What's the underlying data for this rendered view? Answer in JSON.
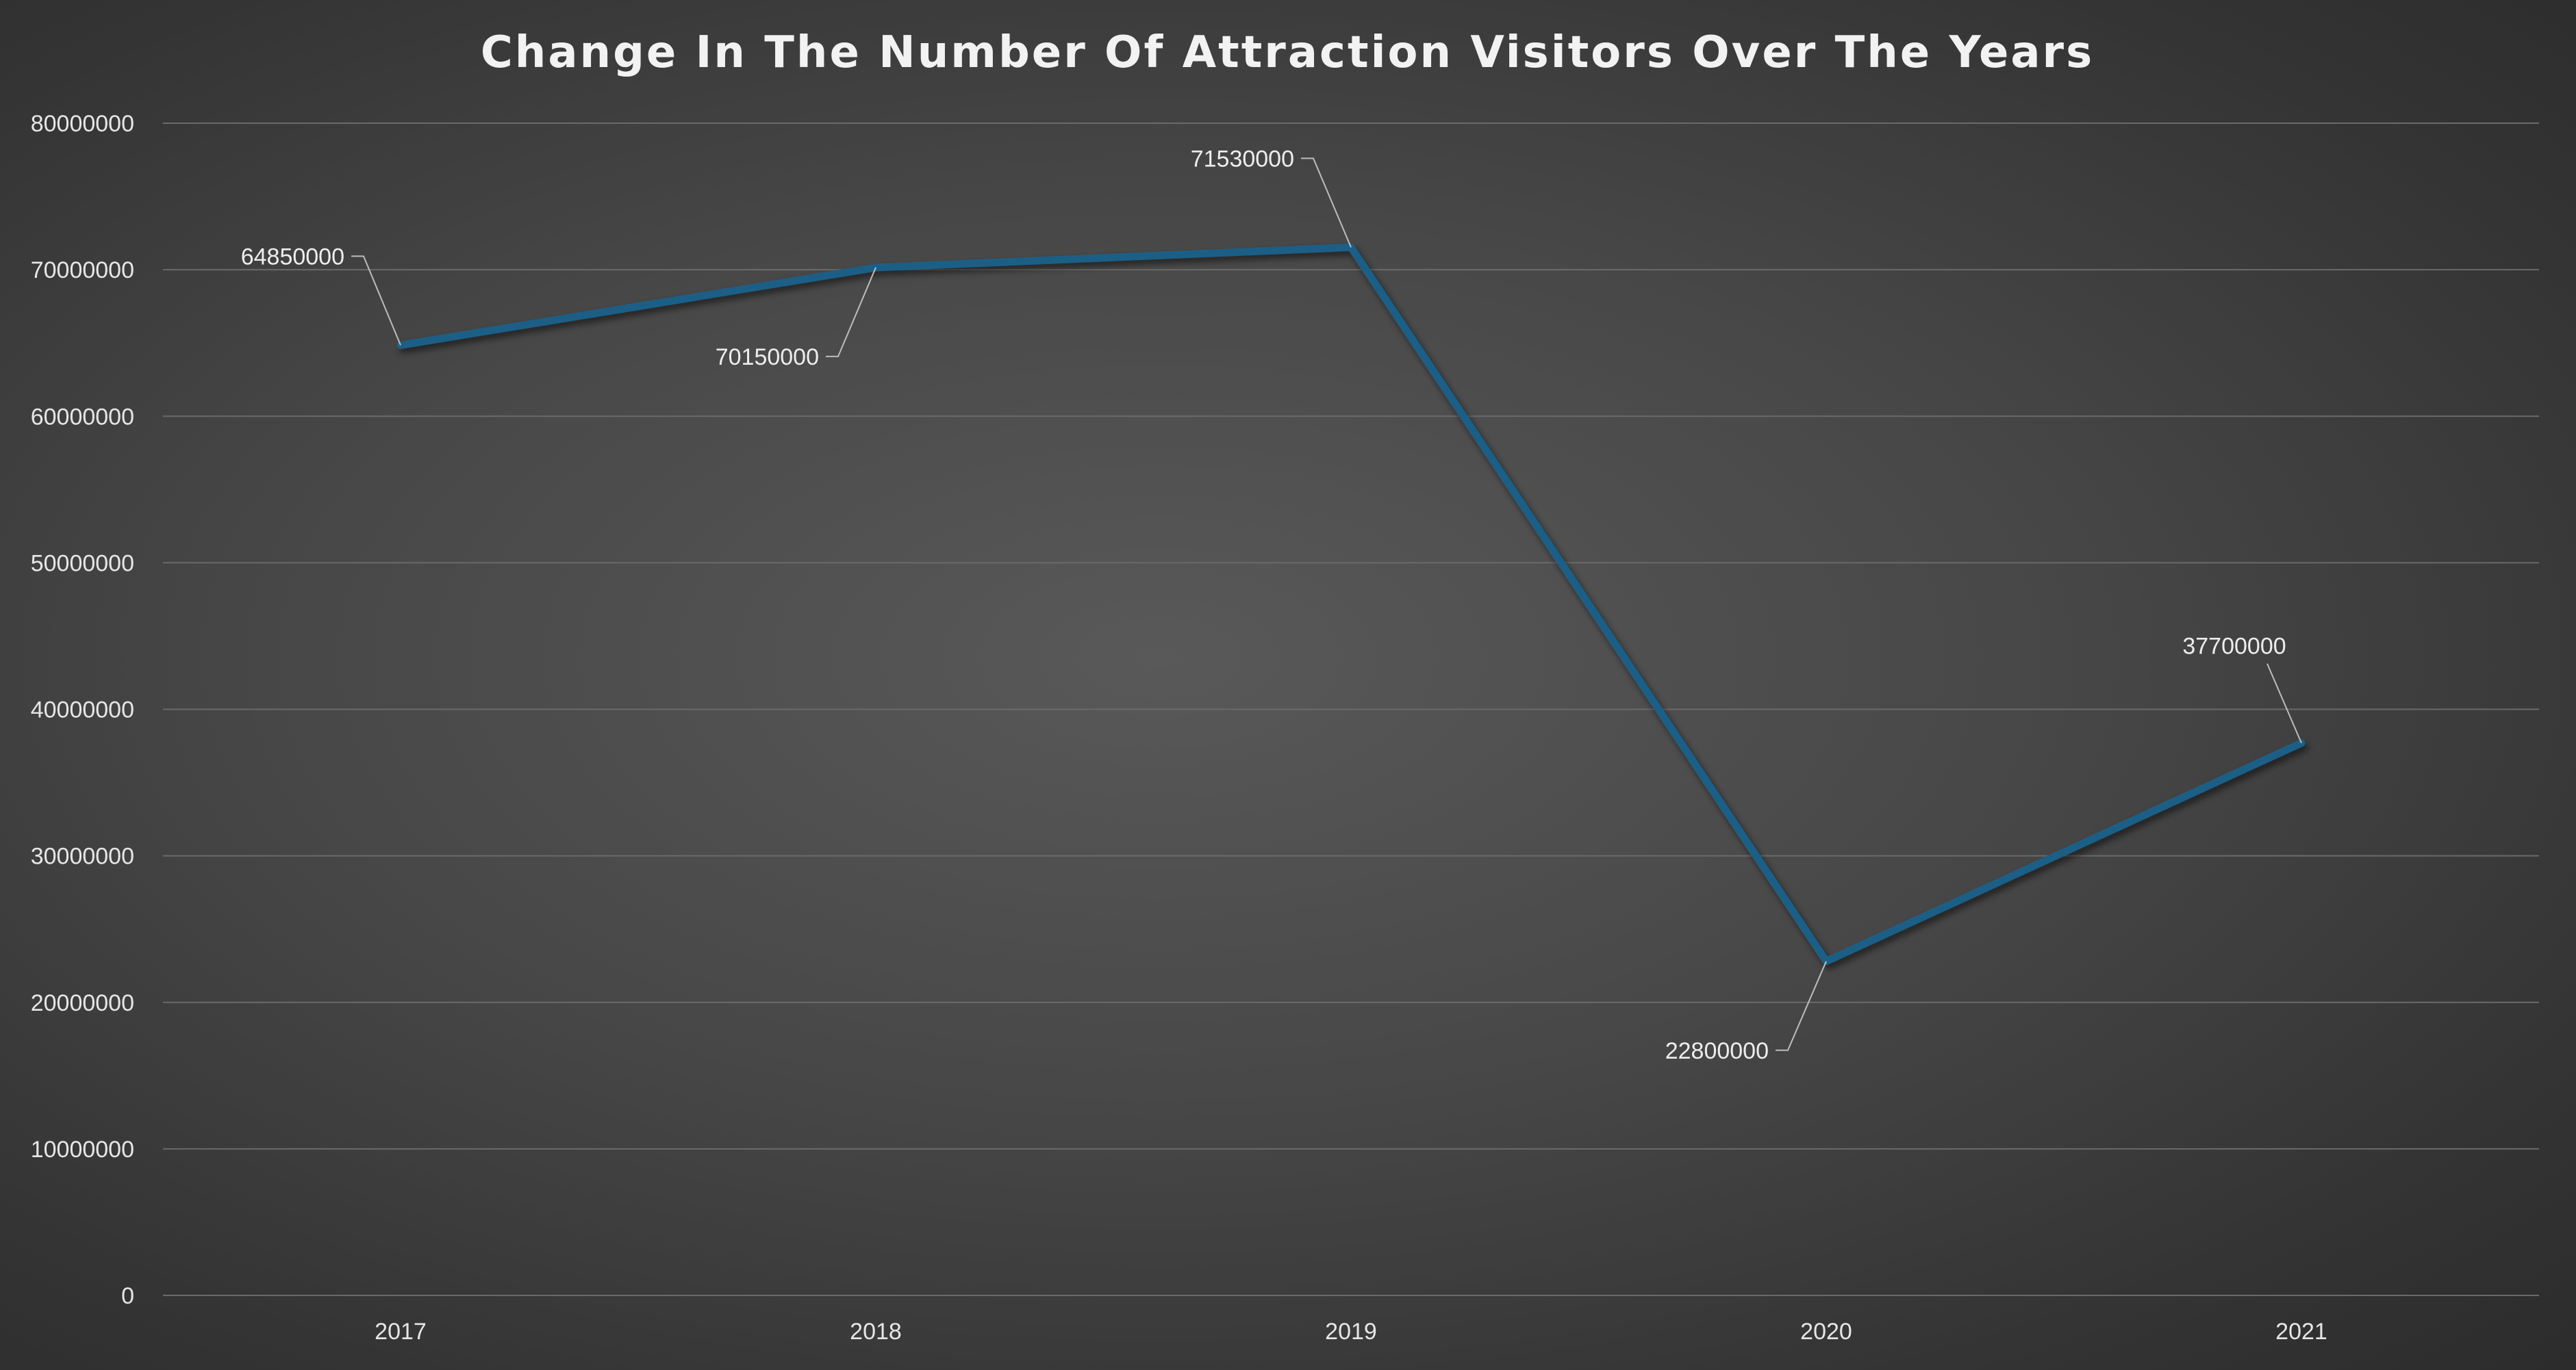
{
  "chart_data": {
    "type": "line",
    "title": "Change In The Number Of Attraction Visitors Over The Years",
    "categories": [
      "2017",
      "2018",
      "2019",
      "2020",
      "2021"
    ],
    "series": [
      {
        "values": [
          64850000,
          70150000,
          71530000,
          22800000,
          37700000
        ],
        "color": "#1f5f86"
      }
    ],
    "data_labels": [
      "64850000",
      "70150000",
      "71530000",
      "22800000",
      "37700000"
    ],
    "y_ticks": [
      "0",
      "10000000",
      "20000000",
      "30000000",
      "40000000",
      "50000000",
      "60000000",
      "70000000",
      "80000000"
    ],
    "ylim": [
      0,
      80000000
    ],
    "grid": true,
    "legend": "none",
    "background_color": "#474747",
    "gridline_color": "#6a6a6a",
    "text_color": "#e6e6e6"
  }
}
